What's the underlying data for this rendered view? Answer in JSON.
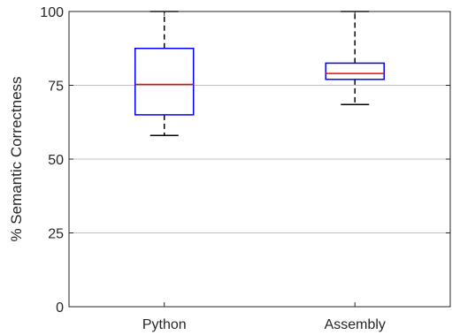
{
  "chart_data": {
    "type": "box",
    "title": "",
    "xlabel": "",
    "ylabel": "% Semantic Correctness",
    "ylim": [
      0,
      100
    ],
    "yticks": [
      0,
      25,
      50,
      75,
      100
    ],
    "ytick_labels": [
      "0",
      "25",
      "50",
      "75",
      "100"
    ],
    "grid": "horizontal",
    "categories": [
      "Python",
      "Assembly"
    ],
    "boxes": [
      {
        "category": "Python",
        "whisker_low": 58,
        "q1": 65,
        "median": 75.3,
        "q3": 87.5,
        "whisker_high": 100
      },
      {
        "category": "Assembly",
        "whisker_low": 68.5,
        "q1": 77,
        "median": 79,
        "q3": 82.5,
        "whisker_high": 100
      }
    ],
    "colors": {
      "box": "#0000ff",
      "median": "#ff0000",
      "whisker": "#000000",
      "grid": "#c0c0c0",
      "axis": "#262626"
    }
  }
}
